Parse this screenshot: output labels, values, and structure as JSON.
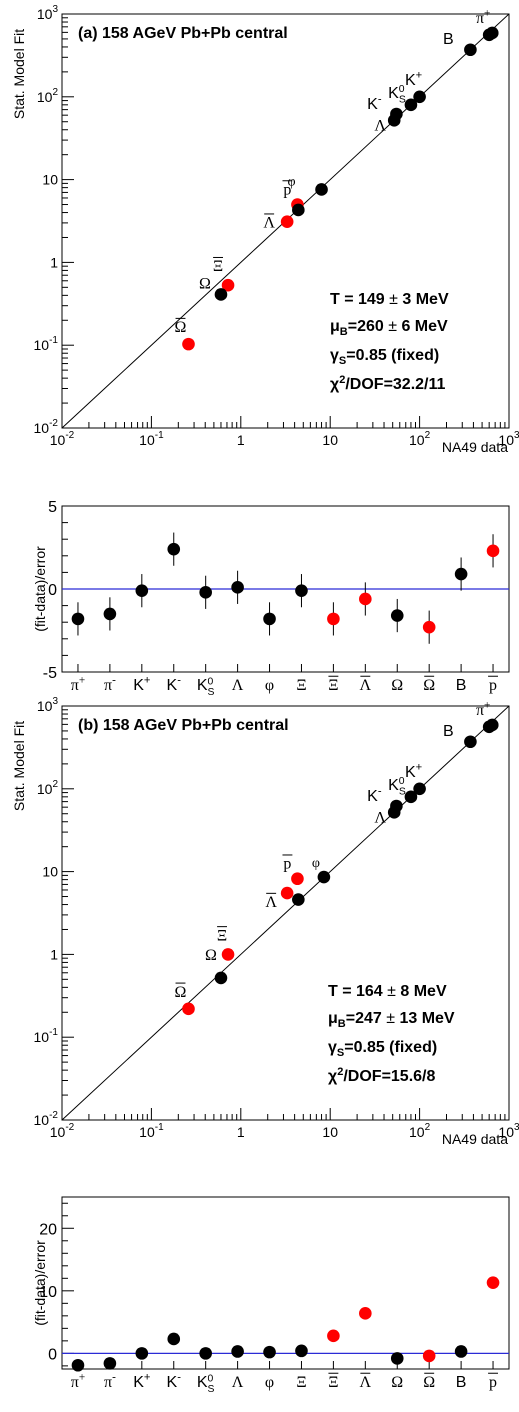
{
  "colors": {
    "black": "#000000",
    "red": "#ff0000",
    "zero_line": "#2b2bd6"
  },
  "chart_data": [
    {
      "type": "scatter",
      "title": "(a) 158 AGeV Pb+Pb central",
      "xlabel": "NA49 data",
      "ylabel": "Stat. Model Fit",
      "scale": "log-log",
      "xlim": [
        0.01,
        1000
      ],
      "ylim": [
        0.01,
        1000
      ],
      "x_ticks": [
        "10^-2",
        "10^-1",
        "1",
        "10",
        "10^2",
        "10^3"
      ],
      "y_ticks": [
        "10^-2",
        "10^-1",
        "1",
        "10",
        "10^2",
        "10^3"
      ],
      "diagonal": true,
      "params": [
        "T = 149 ± 3 MeV",
        "μB=260 ± 6 MeV",
        "γS=0.85 (fixed)",
        "χ2/DOF=32.2/11"
      ],
      "points": [
        {
          "label": "π+",
          "x": 600,
          "y": 560,
          "color": "black"
        },
        {
          "label": "π-",
          "x": 650,
          "y": 590,
          "color": "black"
        },
        {
          "label": "B",
          "x": 370,
          "y": 370,
          "color": "black"
        },
        {
          "label": "K+",
          "x": 100,
          "y": 100,
          "color": "black"
        },
        {
          "label": "KS0",
          "x": 80,
          "y": 80,
          "color": "black"
        },
        {
          "label": "K-",
          "x": 55,
          "y": 62,
          "color": "black"
        },
        {
          "label": "Λ",
          "x": 52,
          "y": 52,
          "color": "black"
        },
        {
          "label": "φ",
          "x": 8,
          "y": 7.6,
          "color": "black"
        },
        {
          "label": "p̄",
          "x": 4.3,
          "y": 5.0,
          "color": "red"
        },
        {
          "label": "Ξ",
          "x": 4.4,
          "y": 4.3,
          "color": "black"
        },
        {
          "label": "Λ̄",
          "x": 3.3,
          "y": 3.1,
          "color": "red"
        },
        {
          "label": "Ξ̄",
          "x": 0.72,
          "y": 0.53,
          "color": "red"
        },
        {
          "label": "Ω",
          "x": 0.6,
          "y": 0.41,
          "color": "black"
        },
        {
          "label": "Ω̄",
          "x": 0.26,
          "y": 0.103,
          "color": "red"
        }
      ]
    },
    {
      "type": "scatter",
      "ylabel": "(fit-data)/error",
      "ylim": [
        -5,
        5
      ],
      "y_ticks": [
        "-5",
        "0",
        "5"
      ],
      "categories": [
        "π+",
        "π-",
        "K+",
        "K-",
        "KS0",
        "Λ",
        "φ",
        "Ξ",
        "Ξ̄",
        "Λ̄",
        "Ω",
        "Ω̄",
        "B",
        "p̄"
      ],
      "values": [
        -1.8,
        -1.5,
        -0.1,
        2.4,
        -0.2,
        0.1,
        -1.8,
        -0.1,
        -1.8,
        -0.6,
        -1.6,
        -2.3,
        0.9,
        2.3
      ],
      "errors": [
        1,
        1,
        1,
        1,
        1,
        1,
        1,
        1,
        1,
        1,
        1,
        1,
        1,
        1
      ],
      "colors": [
        "black",
        "black",
        "black",
        "black",
        "black",
        "black",
        "black",
        "black",
        "red",
        "red",
        "black",
        "red",
        "black",
        "red"
      ]
    },
    {
      "type": "scatter",
      "title": "(b) 158 AGeV Pb+Pb central",
      "xlabel": "NA49 data",
      "ylabel": "Stat. Model Fit",
      "scale": "log-log",
      "xlim": [
        0.01,
        1000
      ],
      "ylim": [
        0.01,
        1000
      ],
      "x_ticks": [
        "10^-2",
        "10^-1",
        "1",
        "10",
        "10^2",
        "10^3"
      ],
      "y_ticks": [
        "10^-2",
        "10^-1",
        "1",
        "10",
        "10^2",
        "10^3"
      ],
      "diagonal": true,
      "params": [
        "T = 164 ± 8 MeV",
        "μB=247 ± 13 MeV",
        "γS=0.85 (fixed)",
        "χ2/DOF=15.6/8"
      ],
      "points": [
        {
          "label": "π+",
          "x": 600,
          "y": 560,
          "color": "black"
        },
        {
          "label": "π-",
          "x": 650,
          "y": 590,
          "color": "black"
        },
        {
          "label": "B",
          "x": 370,
          "y": 370,
          "color": "black"
        },
        {
          "label": "K+",
          "x": 100,
          "y": 100,
          "color": "black"
        },
        {
          "label": "KS0",
          "x": 80,
          "y": 80,
          "color": "black"
        },
        {
          "label": "K-",
          "x": 55,
          "y": 62,
          "color": "black"
        },
        {
          "label": "Λ",
          "x": 52,
          "y": 52,
          "color": "black"
        },
        {
          "label": "φ",
          "x": 8.5,
          "y": 8.6,
          "color": "black"
        },
        {
          "label": "p̄",
          "x": 4.3,
          "y": 8.2,
          "color": "red"
        },
        {
          "label": "Ξ",
          "x": 4.4,
          "y": 4.6,
          "color": "black"
        },
        {
          "label": "Λ̄",
          "x": 3.3,
          "y": 5.5,
          "color": "red"
        },
        {
          "label": "Ξ̄",
          "x": 0.72,
          "y": 1.0,
          "color": "red"
        },
        {
          "label": "Ω",
          "x": 0.6,
          "y": 0.52,
          "color": "black"
        },
        {
          "label": "Ω̄",
          "x": 0.26,
          "y": 0.22,
          "color": "red"
        }
      ]
    },
    {
      "type": "scatter",
      "ylabel": "(fit-data)/error",
      "ylim": [
        -2.5,
        25
      ],
      "y_ticks": [
        "0",
        "10",
        "20"
      ],
      "categories": [
        "π+",
        "π-",
        "K+",
        "K-",
        "KS0",
        "Λ",
        "φ",
        "Ξ",
        "Ξ̄",
        "Λ̄",
        "Ω",
        "Ω̄",
        "B",
        "p̄"
      ],
      "values": [
        -1.9,
        -1.6,
        0.0,
        2.3,
        0.0,
        0.3,
        0.2,
        0.4,
        2.8,
        6.4,
        -0.8,
        -0.4,
        0.3,
        11.3
      ],
      "colors": [
        "black",
        "black",
        "black",
        "black",
        "black",
        "black",
        "black",
        "black",
        "red",
        "red",
        "black",
        "red",
        "black",
        "red"
      ]
    }
  ]
}
